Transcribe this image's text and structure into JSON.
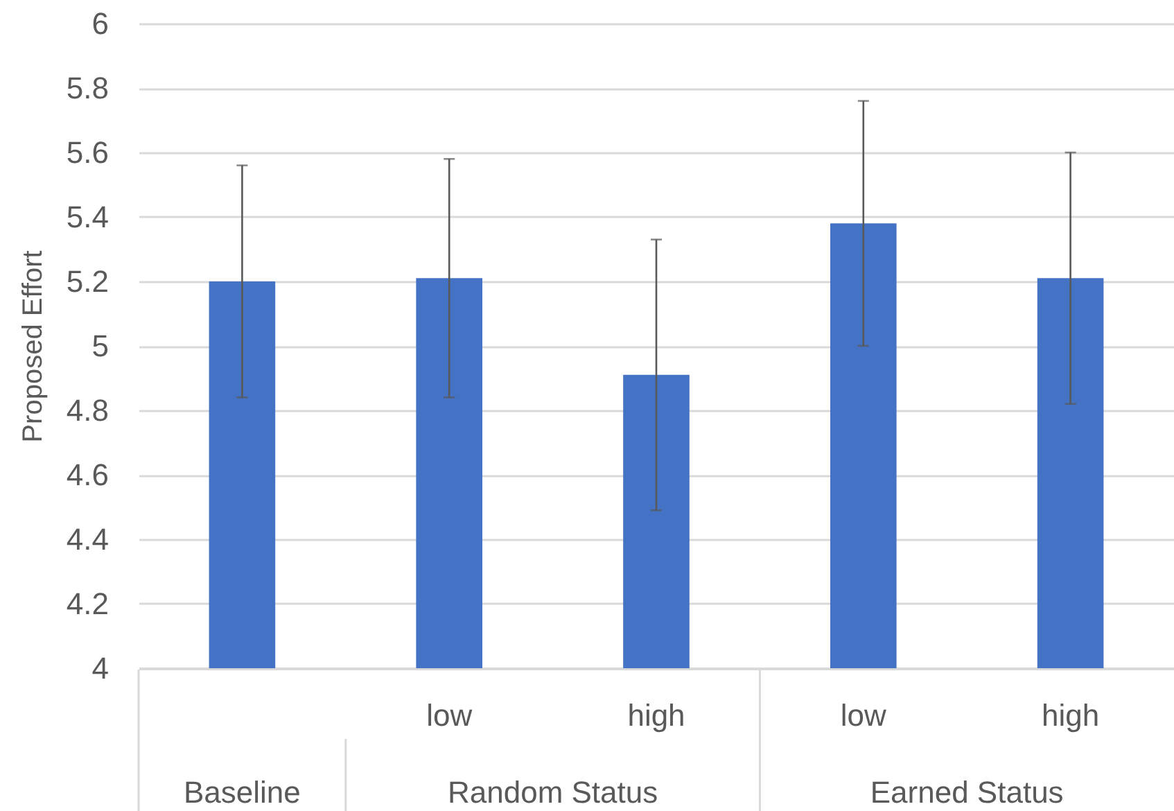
{
  "chart_data": {
    "type": "bar",
    "ylabel": "Proposed Effort",
    "categories": [
      null,
      "low",
      "high",
      "low",
      "high"
    ],
    "values": [
      5.2,
      5.21,
      4.91,
      5.38,
      5.21
    ],
    "errors": [
      [
        4.84,
        5.56
      ],
      [
        4.84,
        5.58
      ],
      [
        4.49,
        5.33
      ],
      [
        5.0,
        5.76
      ],
      [
        4.82,
        5.6
      ]
    ],
    "color": "#4472c4",
    "ylim": [
      4,
      6
    ],
    "yticks": [
      4,
      4.2,
      4.4,
      4.6,
      4.8,
      5,
      5.2,
      5.4,
      5.6,
      5.8,
      6
    ],
    "grid": "y",
    "annotations": [
      "Baseline",
      "Random Status",
      "Earned Status"
    ]
  }
}
